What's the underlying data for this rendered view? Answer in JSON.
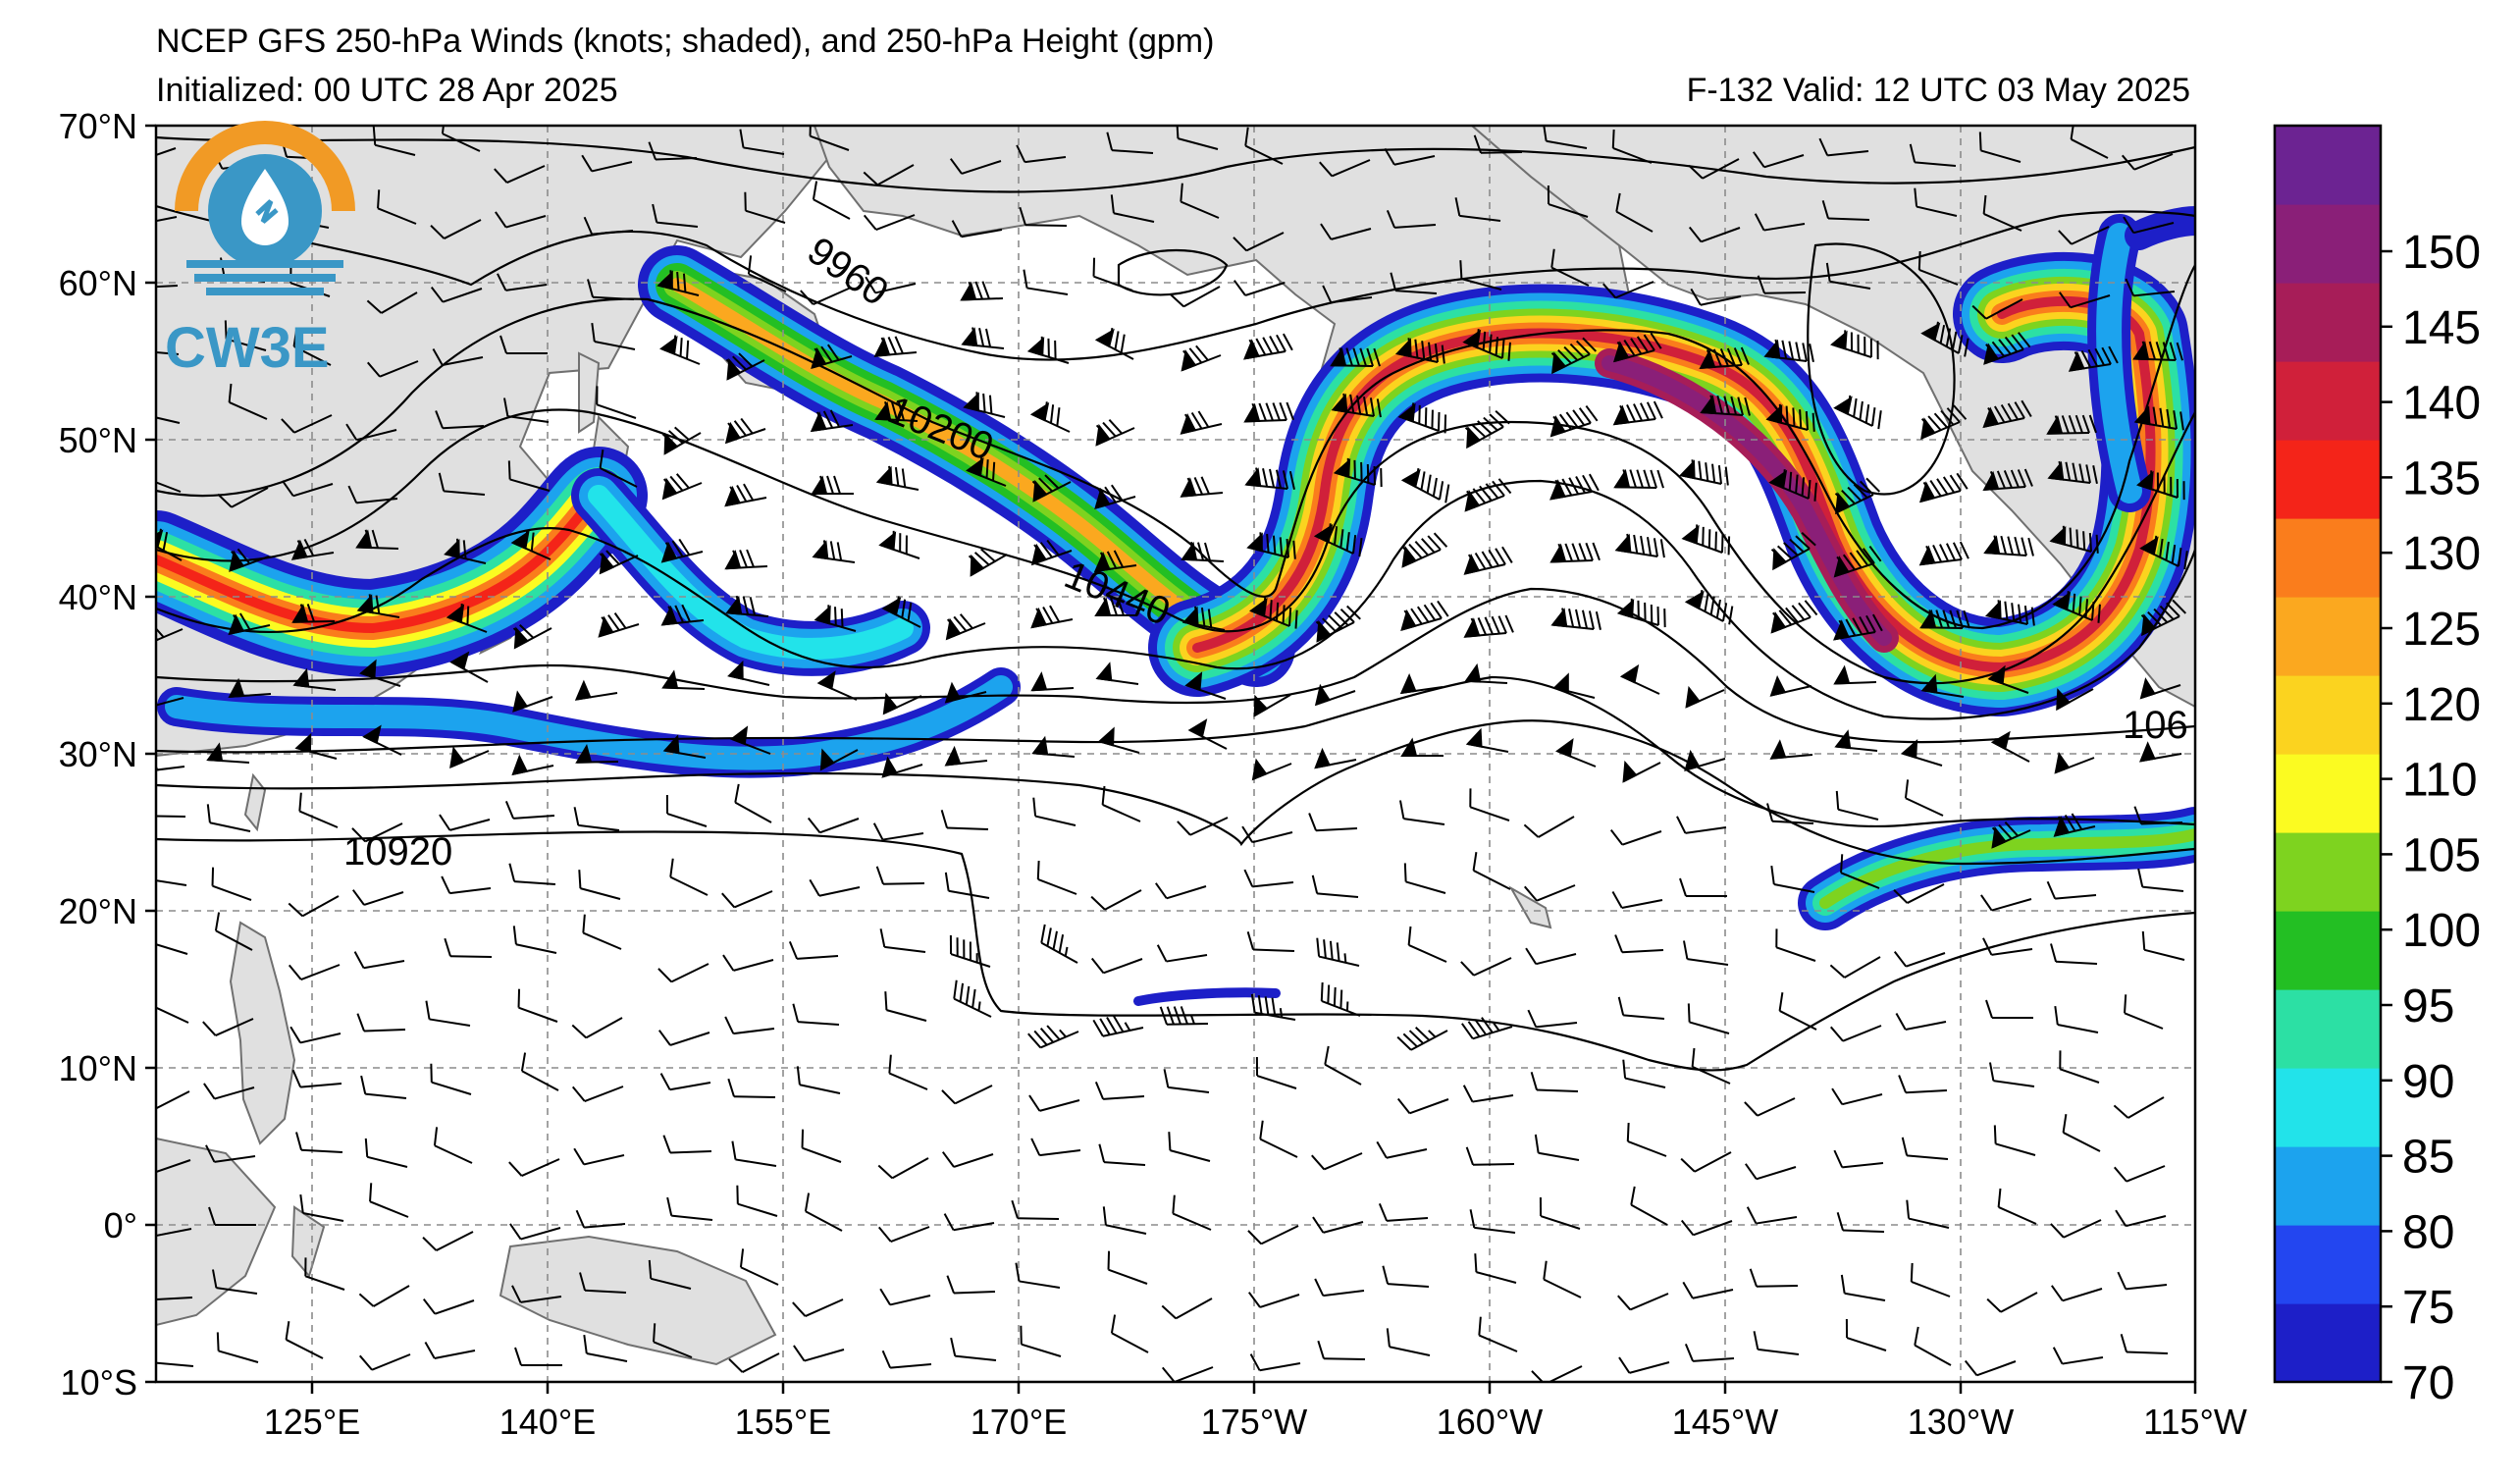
{
  "header": {
    "title": "NCEP GFS 250-hPa Winds (knots; shaded), and 250-hPa Height (gpm)",
    "initialized": "Initialized: 00 UTC 28 Apr 2025",
    "valid": "F-132  Valid: 12 UTC 03 May 2025"
  },
  "logo": {
    "text": "CW3E",
    "colors": {
      "ring": "#f19a25",
      "blue": "#3a97c6"
    }
  },
  "map": {
    "lat_labels": [
      "70°N",
      "60°N",
      "50°N",
      "40°N",
      "30°N",
      "20°N",
      "10°N",
      "0°",
      "10°S"
    ],
    "lon_labels": [
      "125°E",
      "140°E",
      "155°E",
      "170°E",
      "175°W",
      "160°W",
      "145°W",
      "130°W",
      "115°W"
    ],
    "contour_labels": [
      "9960",
      "10200",
      "10440",
      "10920",
      "106"
    ],
    "land_color": "#e0e0e0",
    "coast_color": "#707070"
  },
  "colorbar": {
    "labels": [
      "150",
      "145",
      "140",
      "135",
      "130",
      "125",
      "120",
      "110",
      "105",
      "100",
      "95",
      "90",
      "85",
      "80",
      "75",
      "70"
    ],
    "colors": [
      "#1d1fc8",
      "#2346f0",
      "#1ca3ee",
      "#22e3ea",
      "#2ce0a4",
      "#23bf23",
      "#7ed31f",
      "#fbfb21",
      "#fbd31f",
      "#fba81f",
      "#fa7d1c",
      "#f42419",
      "#d0203a",
      "#a71d58",
      "#8a1f78",
      "#6c2392"
    ]
  }
}
